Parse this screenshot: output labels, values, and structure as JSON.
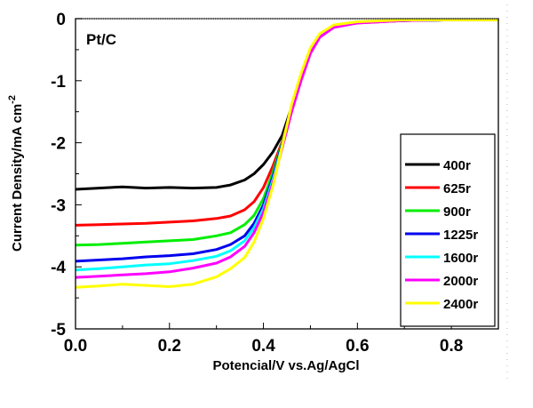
{
  "chart_data": {
    "type": "line",
    "title": "",
    "annotation": "Pt/C",
    "xlabel": "Potencial/V vs.Ag/AgCl",
    "ylabel": "Current Density/mA cm",
    "ylabel_superscript": "-2",
    "xlim": [
      0.0,
      0.9
    ],
    "ylim": [
      -5,
      0
    ],
    "xticks": [
      "0.0",
      "0.2",
      "0.4",
      "0.6",
      "0.8"
    ],
    "xtick_values": [
      0.0,
      0.2,
      0.4,
      0.6,
      0.8
    ],
    "yticks": [
      "0",
      "-1",
      "-2",
      "-3",
      "-4",
      "-5"
    ],
    "ytick_values": [
      0,
      -1,
      -2,
      -3,
      -4,
      -5
    ],
    "grid": false,
    "legend_position": "right",
    "x": [
      0.0,
      0.05,
      0.1,
      0.15,
      0.2,
      0.25,
      0.3,
      0.33,
      0.36,
      0.38,
      0.4,
      0.42,
      0.44,
      0.46,
      0.48,
      0.5,
      0.52,
      0.55,
      0.6,
      0.7,
      0.8,
      0.9
    ],
    "series": [
      {
        "name": "400r",
        "color": "#000000",
        "values": [
          -2.75,
          -2.73,
          -2.71,
          -2.73,
          -2.72,
          -2.73,
          -2.72,
          -2.68,
          -2.6,
          -2.5,
          -2.35,
          -2.15,
          -1.88,
          -1.42,
          -0.94,
          -0.51,
          -0.27,
          -0.12,
          -0.06,
          -0.03,
          -0.02,
          -0.02
        ]
      },
      {
        "name": "625r",
        "color": "#ff0000",
        "values": [
          -3.33,
          -3.32,
          -3.31,
          -3.3,
          -3.28,
          -3.26,
          -3.22,
          -3.18,
          -3.08,
          -2.95,
          -2.72,
          -2.38,
          -1.98,
          -1.45,
          -0.97,
          -0.53,
          -0.28,
          -0.13,
          -0.07,
          -0.03,
          -0.02,
          -0.02
        ]
      },
      {
        "name": "900r",
        "color": "#00ee00",
        "values": [
          -3.65,
          -3.64,
          -3.62,
          -3.6,
          -3.58,
          -3.56,
          -3.5,
          -3.45,
          -3.32,
          -3.17,
          -2.9,
          -2.48,
          -2.0,
          -1.45,
          -0.96,
          -0.52,
          -0.27,
          -0.12,
          -0.06,
          -0.03,
          -0.02,
          -0.02
        ]
      },
      {
        "name": "1225r",
        "color": "#0000ee",
        "values": [
          -3.91,
          -3.89,
          -3.87,
          -3.84,
          -3.82,
          -3.79,
          -3.72,
          -3.64,
          -3.5,
          -3.3,
          -3.0,
          -2.55,
          -2.02,
          -1.46,
          -0.97,
          -0.53,
          -0.28,
          -0.12,
          -0.06,
          -0.03,
          -0.02,
          -0.02
        ]
      },
      {
        "name": "1600r",
        "color": "#00ffff",
        "values": [
          -4.05,
          -4.03,
          -4.0,
          -3.97,
          -3.95,
          -3.9,
          -3.83,
          -3.74,
          -3.58,
          -3.37,
          -3.06,
          -2.6,
          -2.05,
          -1.47,
          -0.97,
          -0.53,
          -0.28,
          -0.12,
          -0.06,
          -0.03,
          -0.02,
          -0.02
        ]
      },
      {
        "name": "2000r",
        "color": "#ff00ff",
        "values": [
          -4.17,
          -4.15,
          -4.13,
          -4.11,
          -4.08,
          -4.02,
          -3.94,
          -3.84,
          -3.67,
          -3.45,
          -3.12,
          -2.65,
          -2.08,
          -1.5,
          -1.0,
          -0.56,
          -0.3,
          -0.14,
          -0.07,
          -0.03,
          -0.02,
          -0.02
        ]
      },
      {
        "name": "2400r",
        "color": "#ffff00",
        "values": [
          -4.33,
          -4.31,
          -4.28,
          -4.3,
          -4.32,
          -4.28,
          -4.16,
          -4.03,
          -3.85,
          -3.6,
          -3.22,
          -2.7,
          -2.05,
          -1.38,
          -0.88,
          -0.47,
          -0.24,
          -0.1,
          -0.05,
          -0.02,
          -0.02,
          -0.02
        ]
      }
    ]
  }
}
